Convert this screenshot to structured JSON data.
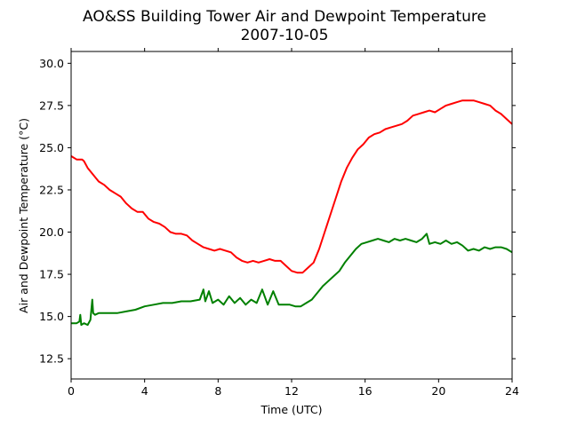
{
  "chart_data": {
    "type": "line",
    "title": "AO&SS Building Tower Air and Dewpoint Temperature",
    "subtitle": "2007-10-05",
    "xlabel": "Time (UTC)",
    "ylabel": "Air and Dewpoint Temperature (°C)",
    "xlim": [
      0,
      24
    ],
    "ylim": [
      11.3,
      30.7
    ],
    "xticks": [
      0,
      4,
      8,
      12,
      16,
      20,
      24
    ],
    "yticks": [
      12.5,
      15.0,
      17.5,
      20.0,
      22.5,
      25.0,
      27.5,
      30.0
    ],
    "xtick_labels": [
      "0",
      "4",
      "8",
      "12",
      "16",
      "20",
      "24"
    ],
    "ytick_labels": [
      "12.5",
      "15.0",
      "17.5",
      "20.0",
      "22.5",
      "25.0",
      "27.5",
      "30.0"
    ],
    "grid": false,
    "legend": false,
    "series": [
      {
        "color": "#ff0000",
        "x": [
          0,
          0.3,
          0.6,
          0.7,
          0.9,
          1.2,
          1.5,
          1.8,
          2.1,
          2.4,
          2.7,
          3.0,
          3.3,
          3.6,
          3.9,
          4.2,
          4.5,
          4.8,
          5.1,
          5.4,
          5.7,
          6.0,
          6.3,
          6.6,
          6.9,
          7.2,
          7.5,
          7.8,
          8.1,
          8.4,
          8.7,
          9.0,
          9.3,
          9.6,
          9.9,
          10.2,
          10.5,
          10.8,
          11.1,
          11.4,
          11.7,
          12.0,
          12.3,
          12.6,
          12.9,
          13.2,
          13.5,
          13.8,
          14.1,
          14.4,
          14.7,
          15.0,
          15.3,
          15.6,
          15.9,
          16.2,
          16.5,
          16.8,
          17.1,
          17.4,
          17.7,
          18.0,
          18.3,
          18.6,
          18.9,
          19.2,
          19.5,
          19.8,
          20.1,
          20.4,
          20.7,
          21.0,
          21.3,
          21.6,
          21.9,
          22.2,
          22.5,
          22.8,
          23.1,
          23.4,
          23.7,
          24.0
        ],
        "values": [
          24.5,
          24.3,
          24.3,
          24.2,
          23.8,
          23.4,
          23.0,
          22.8,
          22.5,
          22.3,
          22.1,
          21.7,
          21.4,
          21.2,
          21.2,
          20.8,
          20.6,
          20.5,
          20.3,
          20.0,
          19.9,
          19.9,
          19.8,
          19.5,
          19.3,
          19.1,
          19.0,
          18.9,
          19.0,
          18.9,
          18.8,
          18.5,
          18.3,
          18.2,
          18.3,
          18.2,
          18.3,
          18.4,
          18.3,
          18.3,
          18.0,
          17.7,
          17.6,
          17.6,
          17.9,
          18.2,
          19.0,
          20.0,
          21.0,
          22.0,
          23.0,
          23.8,
          24.4,
          24.9,
          25.2,
          25.6,
          25.8,
          25.9,
          26.1,
          26.2,
          26.3,
          26.4,
          26.6,
          26.9,
          27.0,
          27.1,
          27.2,
          27.1,
          27.3,
          27.5,
          27.6,
          27.7,
          27.8,
          27.8,
          27.8,
          27.7,
          27.6,
          27.5,
          27.2,
          27.0,
          26.7,
          26.4
        ]
      },
      {
        "color": "#008000",
        "x": [
          0,
          0.3,
          0.45,
          0.5,
          0.55,
          0.7,
          0.9,
          1.05,
          1.15,
          1.2,
          1.3,
          1.5,
          2.0,
          2.5,
          3.0,
          3.5,
          4.0,
          4.5,
          5.0,
          5.5,
          6.0,
          6.5,
          7.0,
          7.2,
          7.3,
          7.5,
          7.7,
          8.0,
          8.3,
          8.6,
          8.9,
          9.2,
          9.5,
          9.8,
          10.1,
          10.4,
          10.7,
          11.0,
          11.3,
          11.6,
          11.9,
          12.2,
          12.5,
          12.8,
          13.1,
          13.4,
          13.7,
          14.0,
          14.3,
          14.6,
          14.9,
          15.2,
          15.5,
          15.8,
          16.1,
          16.4,
          16.7,
          17.0,
          17.3,
          17.6,
          17.9,
          18.2,
          18.5,
          18.8,
          19.1,
          19.35,
          19.5,
          19.8,
          20.1,
          20.4,
          20.7,
          21.0,
          21.3,
          21.6,
          21.9,
          22.2,
          22.5,
          22.8,
          23.1,
          23.4,
          23.7,
          24.0
        ],
        "values": [
          14.6,
          14.6,
          14.7,
          15.1,
          14.5,
          14.6,
          14.5,
          14.8,
          16.0,
          15.2,
          15.1,
          15.2,
          15.2,
          15.2,
          15.3,
          15.4,
          15.6,
          15.7,
          15.8,
          15.8,
          15.9,
          15.9,
          16.0,
          16.6,
          15.9,
          16.5,
          15.8,
          16.0,
          15.7,
          16.2,
          15.8,
          16.1,
          15.7,
          16.0,
          15.8,
          16.6,
          15.7,
          16.5,
          15.7,
          15.7,
          15.7,
          15.6,
          15.6,
          15.8,
          16.0,
          16.4,
          16.8,
          17.1,
          17.4,
          17.7,
          18.2,
          18.6,
          19.0,
          19.3,
          19.4,
          19.5,
          19.6,
          19.5,
          19.4,
          19.6,
          19.5,
          19.6,
          19.5,
          19.4,
          19.6,
          19.9,
          19.3,
          19.4,
          19.3,
          19.5,
          19.3,
          19.4,
          19.2,
          18.9,
          19.0,
          18.9,
          19.1,
          19.0,
          19.1,
          19.1,
          19.0,
          18.8
        ]
      }
    ]
  }
}
